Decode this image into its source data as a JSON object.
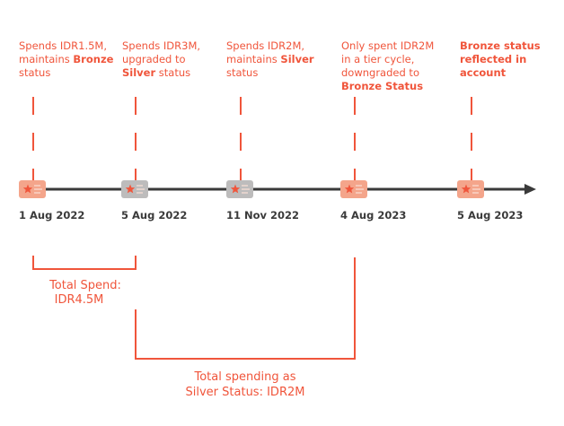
{
  "colors": {
    "accent": "#f0553b",
    "bronze": "#f4a58b",
    "silver": "#bdbcbc",
    "timeline": "#3a3a3a"
  },
  "events": [
    {
      "date": "1 Aug 2022",
      "tier": "bronze",
      "lines": [
        [
          {
            "t": "Spends IDR1.5M,",
            "b": false
          }
        ],
        [
          {
            "t": "maintains ",
            "b": false
          },
          {
            "t": "Bronze",
            "b": true
          }
        ],
        [
          {
            "t": "status",
            "b": false
          }
        ]
      ]
    },
    {
      "date": "5 Aug 2022",
      "tier": "silver",
      "lines": [
        [
          {
            "t": "Spends IDR3M,",
            "b": false
          }
        ],
        [
          {
            "t": "upgraded to",
            "b": false
          }
        ],
        [
          {
            "t": "Silver",
            "b": true
          },
          {
            "t": " status",
            "b": false
          }
        ]
      ]
    },
    {
      "date": "11 Nov 2022",
      "tier": "silver",
      "lines": [
        [
          {
            "t": "Spends IDR2M,",
            "b": false
          }
        ],
        [
          {
            "t": "maintains ",
            "b": false
          },
          {
            "t": "Silver",
            "b": true
          }
        ],
        [
          {
            "t": "status",
            "b": false
          }
        ]
      ]
    },
    {
      "date": "4 Aug 2023",
      "tier": "bronze",
      "lines": [
        [
          {
            "t": "Only spent IDR2M",
            "b": false
          }
        ],
        [
          {
            "t": "in a tier cycle,",
            "b": false
          }
        ],
        [
          {
            "t": "downgraded to",
            "b": false
          }
        ],
        [
          {
            "t": "Bronze Status",
            "b": true
          }
        ]
      ]
    },
    {
      "date": "5 Aug 2023",
      "tier": "bronze",
      "lines": [
        [
          {
            "t": "Bronze status",
            "b": true
          }
        ],
        [
          {
            "t": "reflected in",
            "b": true
          }
        ],
        [
          {
            "t": "account",
            "b": true
          }
        ]
      ]
    }
  ],
  "totals": [
    {
      "lines": [
        "Total Spend:",
        "IDR4.5M"
      ]
    },
    {
      "lines": [
        "Total spending as",
        "Silver Status: IDR2M"
      ]
    }
  ],
  "icons": {
    "tier_card": "membership-card-star-icon",
    "arrow": "arrow-right-icon"
  }
}
